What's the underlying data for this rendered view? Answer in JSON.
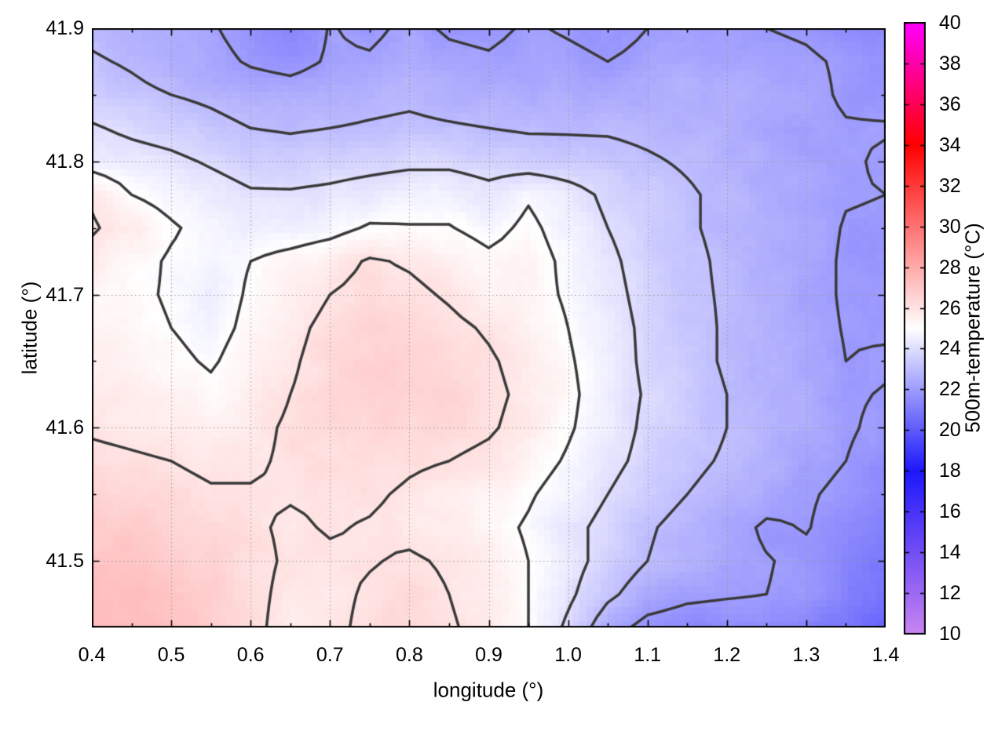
{
  "figure": {
    "background": "#ffffff",
    "text_color": "#000000"
  },
  "axes": {
    "x": {
      "label": "longitude (°)",
      "range": [
        0.4,
        1.4
      ],
      "minor_step": 0.05,
      "ticks": [
        {
          "v": 0.4,
          "label": "0.4"
        },
        {
          "v": 0.5,
          "label": "0.5"
        },
        {
          "v": 0.6,
          "label": "0.6"
        },
        {
          "v": 0.7,
          "label": "0.7"
        },
        {
          "v": 0.8,
          "label": "0.8"
        },
        {
          "v": 0.9,
          "label": "0.9"
        },
        {
          "v": 1.0,
          "label": "1.0"
        },
        {
          "v": 1.1,
          "label": "1.1"
        },
        {
          "v": 1.2,
          "label": "1.2"
        },
        {
          "v": 1.3,
          "label": "1.3"
        },
        {
          "v": 1.4,
          "label": "1.4"
        }
      ]
    },
    "y": {
      "label": "latitude (°)",
      "range": [
        41.45,
        41.9
      ],
      "minor_step": 0.05,
      "ticks": [
        {
          "v": 41.5,
          "label": "41.5"
        },
        {
          "v": 41.6,
          "label": "41.6"
        },
        {
          "v": 41.7,
          "label": "41.7"
        },
        {
          "v": 41.8,
          "label": "41.8"
        },
        {
          "v": 41.9,
          "label": "41.9"
        }
      ]
    },
    "cb": {
      "label": "500m-temperature (°C)",
      "range": [
        10,
        40
      ],
      "ticks": [
        {
          "v": 10,
          "label": "10"
        },
        {
          "v": 12,
          "label": "12"
        },
        {
          "v": 14,
          "label": "14"
        },
        {
          "v": 16,
          "label": "16"
        },
        {
          "v": 18,
          "label": "18"
        },
        {
          "v": 20,
          "label": "20"
        },
        {
          "v": 22,
          "label": "22"
        },
        {
          "v": 24,
          "label": "24"
        },
        {
          "v": 26,
          "label": "26"
        },
        {
          "v": 28,
          "label": "28"
        },
        {
          "v": 30,
          "label": "30"
        },
        {
          "v": 32,
          "label": "32"
        },
        {
          "v": 34,
          "label": "34"
        },
        {
          "v": 36,
          "label": "36"
        },
        {
          "v": 38,
          "label": "38"
        },
        {
          "v": 40,
          "label": "40"
        }
      ]
    }
  },
  "chart_data": {
    "type": "heatmap",
    "title": "",
    "xlabel": "longitude (°)",
    "ylabel": "latitude (°)",
    "colorbar_label": "500m-temperature (°C)",
    "x_range": [
      0.4,
      1.4
    ],
    "y_range": [
      41.45,
      41.9
    ],
    "value_range": [
      10,
      40
    ],
    "grid_on": true,
    "grid_color": "#999999",
    "contour_levels": [
      22,
      23,
      24,
      25,
      26
    ],
    "contour_color": "#3a3a3a",
    "palette_stops": [
      [
        10,
        "#c885f0"
      ],
      [
        18,
        "#1d18fa"
      ],
      [
        25,
        "#ffffff"
      ],
      [
        34,
        "#ff0000"
      ],
      [
        40,
        "#ff00ff"
      ]
    ],
    "texture_noise": {
      "blob": 0.35,
      "grain": 0.12
    },
    "grid": {
      "lon0": 0.4,
      "dlon": 0.05,
      "lat0": 41.9,
      "dlat": -0.025,
      "ncols": 21,
      "nrows": 19,
      "values": [
        [
          22.8,
          22.6,
          22.4,
          22.1,
          21.6,
          21.3,
          22.05,
          21.8,
          22.2,
          21.9,
          21.8,
          22.1,
          21.9,
          21.7,
          22.0,
          22.2,
          22.1,
          22.0,
          21.9,
          21.7,
          21.6
        ],
        [
          23.1,
          22.9,
          22.6,
          22.3,
          21.9,
          21.7,
          22.1,
          22.1,
          22.4,
          22.2,
          22.1,
          22.3,
          22.2,
          22.0,
          22.2,
          22.4,
          22.3,
          22.2,
          22.1,
          21.9,
          21.8
        ],
        [
          23.5,
          23.2,
          23.0,
          22.8,
          22.5,
          22.4,
          22.5,
          22.7,
          22.8,
          22.6,
          22.5,
          22.5,
          22.5,
          22.4,
          22.5,
          22.6,
          22.5,
          22.4,
          22.2,
          21.9,
          21.8
        ],
        [
          24.1,
          23.8,
          23.6,
          23.3,
          23.0,
          22.9,
          23.0,
          23.1,
          23.2,
          23.1,
          23.0,
          22.9,
          22.9,
          22.9,
          22.8,
          22.7,
          22.5,
          22.3,
          22.2,
          22.05,
          22.05
        ],
        [
          24.6,
          24.4,
          24.2,
          23.9,
          23.6,
          23.5,
          23.6,
          23.7,
          23.8,
          23.8,
          23.6,
          23.5,
          23.4,
          23.3,
          23.1,
          22.9,
          22.7,
          22.5,
          22.3,
          22.1,
          21.9
        ],
        [
          25.9,
          25.0,
          24.7,
          24.4,
          24.1,
          24.1,
          24.2,
          24.4,
          24.6,
          24.6,
          24.3,
          24.9,
          24.4,
          23.8,
          23.4,
          23.1,
          22.8,
          22.5,
          22.3,
          22.05,
          22.0
        ],
        [
          26.1,
          25.6,
          25.1,
          24.7,
          24.5,
          24.5,
          24.7,
          25.1,
          25.05,
          25.05,
          24.7,
          25.2,
          24.6,
          24.0,
          23.5,
          23.1,
          22.8,
          22.5,
          22.3,
          21.95,
          21.9
        ],
        [
          25.7,
          25.3,
          24.9,
          24.7,
          25.0,
          25.3,
          25.6,
          26.1,
          25.9,
          25.6,
          25.2,
          25.4,
          24.8,
          24.2,
          23.6,
          23.2,
          22.85,
          22.5,
          22.3,
          21.9,
          21.9
        ],
        [
          25.4,
          25.2,
          24.9,
          24.6,
          25.1,
          25.6,
          26.0,
          26.3,
          26.2,
          25.9,
          25.5,
          25.3,
          24.9,
          24.3,
          23.7,
          23.2,
          22.9,
          22.5,
          22.3,
          21.9,
          21.9
        ],
        [
          25.4,
          25.3,
          25.0,
          24.7,
          25.2,
          25.8,
          26.2,
          26.5,
          26.4,
          26.2,
          25.9,
          25.5,
          25.0,
          24.4,
          23.8,
          23.3,
          22.9,
          22.6,
          22.3,
          21.95,
          21.9
        ],
        [
          25.5,
          25.4,
          25.2,
          24.9,
          25.4,
          25.9,
          26.3,
          26.6,
          26.6,
          26.4,
          26.1,
          25.7,
          25.1,
          24.5,
          23.8,
          23.3,
          22.9,
          22.6,
          22.4,
          22.0,
          22.1
        ],
        [
          25.7,
          25.6,
          25.4,
          25.2,
          25.6,
          26.0,
          26.3,
          26.6,
          26.6,
          26.5,
          26.2,
          25.8,
          25.2,
          24.5,
          23.9,
          23.4,
          23.0,
          22.7,
          22.5,
          22.1,
          21.95
        ],
        [
          25.9,
          25.8,
          25.7,
          25.5,
          25.8,
          26.1,
          26.3,
          26.5,
          26.4,
          26.3,
          26.1,
          25.7,
          25.1,
          24.5,
          23.8,
          23.4,
          23.0,
          22.7,
          22.4,
          22.1,
          21.8
        ],
        [
          26.2,
          26.1,
          26.0,
          25.8,
          25.9,
          26.1,
          26.2,
          26.3,
          26.1,
          26.0,
          25.8,
          25.4,
          24.9,
          24.3,
          23.7,
          23.2,
          22.9,
          22.6,
          22.3,
          22.0,
          21.6
        ],
        [
          26.5,
          26.5,
          26.3,
          26.1,
          26.05,
          26.05,
          26.1,
          26.1,
          25.9,
          25.7,
          25.5,
          25.1,
          24.6,
          24.0,
          23.4,
          23.0,
          22.7,
          22.4,
          22.1,
          21.8,
          21.4
        ],
        [
          26.8,
          26.8,
          26.6,
          26.4,
          26.1,
          25.9,
          26.05,
          25.95,
          25.8,
          25.6,
          25.3,
          24.9,
          24.3,
          23.7,
          23.1,
          22.7,
          22.4,
          21.85,
          22.05,
          21.6,
          21.2
        ],
        [
          27.0,
          27.0,
          26.8,
          26.5,
          26.2,
          25.9,
          25.9,
          25.95,
          26.1,
          25.9,
          25.5,
          25.0,
          24.4,
          23.6,
          23.0,
          22.6,
          22.3,
          22.05,
          21.8,
          21.4,
          21.0
        ],
        [
          27.2,
          27.3,
          27.1,
          26.7,
          26.2,
          25.8,
          25.8,
          26.1,
          26.3,
          26.0,
          25.6,
          25.0,
          24.2,
          23.2,
          22.5,
          22.2,
          22.1,
          22.0,
          21.8,
          21.3,
          20.7
        ],
        [
          27.3,
          27.4,
          27.2,
          26.8,
          26.2,
          25.7,
          25.8,
          26.2,
          26.4,
          26.1,
          25.7,
          25.0,
          23.8,
          22.4,
          21.7,
          21.5,
          21.4,
          21.5,
          21.2,
          20.8,
          20.2
        ]
      ]
    }
  }
}
